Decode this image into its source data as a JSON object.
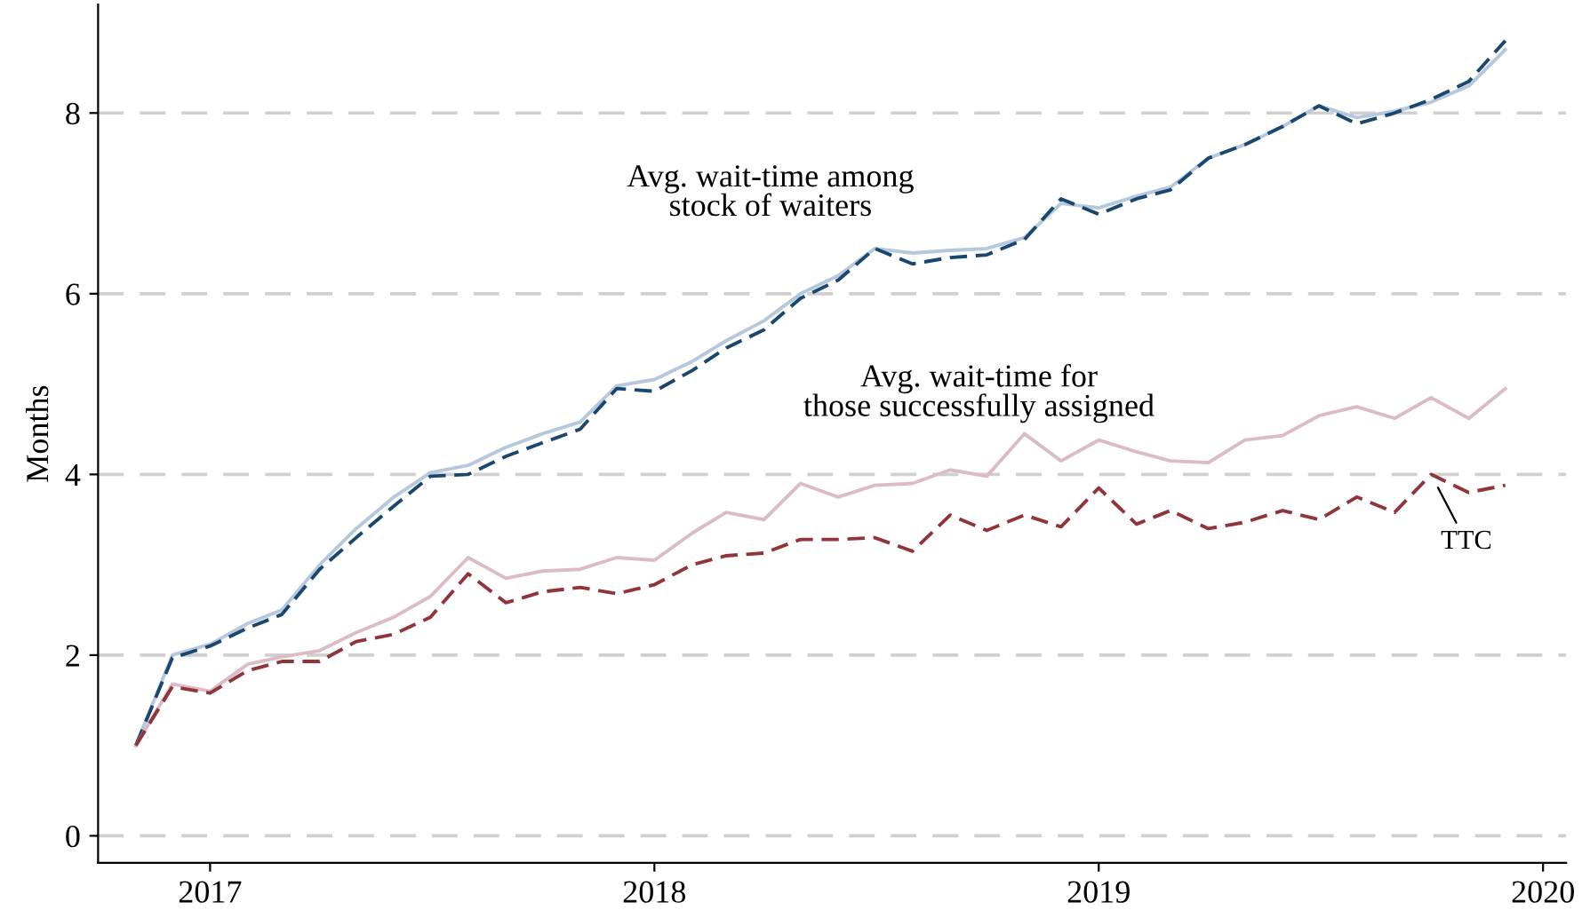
{
  "chart_data": {
    "type": "line",
    "ylabel": "Months",
    "x": [
      "2016-11",
      "2016-12",
      "2017-01",
      "2017-02",
      "2017-03",
      "2017-04",
      "2017-05",
      "2017-06",
      "2017-07",
      "2017-08",
      "2017-09",
      "2017-10",
      "2017-11",
      "2017-12",
      "2018-01",
      "2018-02",
      "2018-03",
      "2018-04",
      "2018-05",
      "2018-06",
      "2018-07",
      "2018-08",
      "2018-09",
      "2018-10",
      "2018-11",
      "2018-12",
      "2019-01",
      "2019-02",
      "2019-03",
      "2019-04",
      "2019-05",
      "2019-06",
      "2019-07",
      "2019-08",
      "2019-09",
      "2019-10",
      "2019-11",
      "2019-12"
    ],
    "series": [
      {
        "color": "#b5c8dc",
        "line_style": "solid",
        "values": [
          1.0,
          2.0,
          2.12,
          2.35,
          2.5,
          3.0,
          3.4,
          3.75,
          4.02,
          4.1,
          4.3,
          4.45,
          4.58,
          4.98,
          5.05,
          5.25,
          5.48,
          5.7,
          6.0,
          6.2,
          6.5,
          6.45,
          6.48,
          6.5,
          6.62,
          7.0,
          6.95,
          7.08,
          7.18,
          7.5,
          7.65,
          7.85,
          8.08,
          7.95,
          8.02,
          8.12,
          8.3,
          8.7
        ]
      },
      {
        "color": "#1a476f",
        "line_style": "dashed",
        "values": [
          1.0,
          1.97,
          2.1,
          2.3,
          2.45,
          2.95,
          3.3,
          3.65,
          3.98,
          4.0,
          4.2,
          4.35,
          4.5,
          4.95,
          4.92,
          5.15,
          5.4,
          5.6,
          5.95,
          6.15,
          6.5,
          6.33,
          6.4,
          6.43,
          6.6,
          7.05,
          6.88,
          7.05,
          7.15,
          7.5,
          7.65,
          7.85,
          8.08,
          7.88,
          8.0,
          8.15,
          8.35,
          8.8
        ]
      },
      {
        "color": "#dcbcc4",
        "line_style": "solid",
        "values": [
          1.0,
          1.68,
          1.6,
          1.9,
          1.98,
          2.05,
          2.25,
          2.42,
          2.65,
          3.08,
          2.85,
          2.93,
          2.95,
          3.08,
          3.05,
          3.35,
          3.58,
          3.5,
          3.9,
          3.75,
          3.88,
          3.9,
          4.05,
          3.98,
          4.45,
          4.15,
          4.38,
          4.25,
          4.15,
          4.13,
          4.38,
          4.43,
          4.65,
          4.75,
          4.62,
          4.85,
          4.62,
          4.95
        ]
      },
      {
        "color": "#90353b",
        "line_style": "dashed",
        "values": [
          1.0,
          1.65,
          1.58,
          1.83,
          1.93,
          1.93,
          2.15,
          2.23,
          2.42,
          2.9,
          2.58,
          2.7,
          2.75,
          2.68,
          2.78,
          3.0,
          3.1,
          3.13,
          3.28,
          3.28,
          3.3,
          3.15,
          3.55,
          3.38,
          3.55,
          3.42,
          3.85,
          3.45,
          3.6,
          3.4,
          3.47,
          3.6,
          3.5,
          3.75,
          3.58,
          4.0,
          3.8,
          3.88
        ]
      }
    ],
    "xlim": [
      "2016-10-01",
      "2020-01-20"
    ],
    "xticks": [
      {
        "value": "2017-01-01",
        "label": "2017"
      },
      {
        "value": "2018-01-01",
        "label": "2018"
      },
      {
        "value": "2019-01-01",
        "label": "2019"
      },
      {
        "value": "2020-01-01",
        "label": "2020"
      }
    ],
    "ylim": [
      -0.3,
      9.2
    ],
    "yticks": [
      0,
      2,
      4,
      6,
      8
    ],
    "grid": "y",
    "annotations": [
      "Avg. wait-time among\nstock of waiters",
      "Avg. wait-time for\nthose successfully assigned",
      {
        "text": "TTC",
        "x": "2019-10",
        "y": 4.0
      }
    ]
  }
}
